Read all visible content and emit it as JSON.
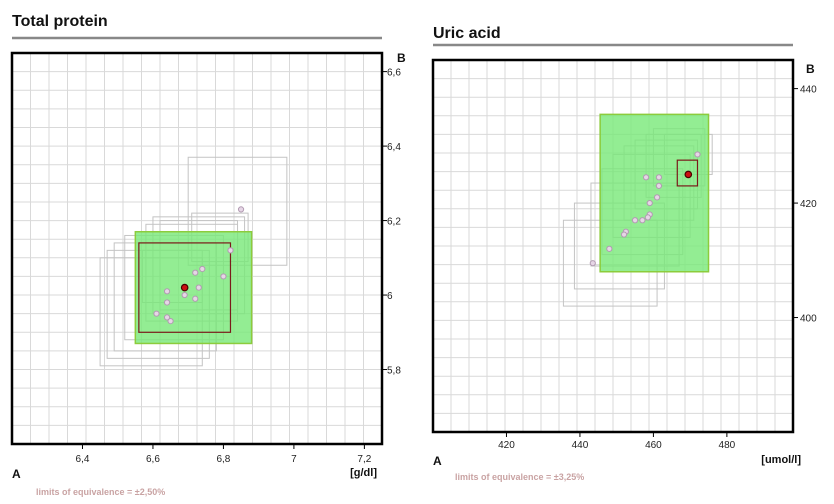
{
  "chart_data": [
    {
      "type": "scatter",
      "title": "Total protein",
      "unit": "[g/dl]",
      "corner_a": "A",
      "corner_b": "B",
      "limits_text": "limits of equivalence = ±2,50%",
      "x_ticks": [
        6.4,
        6.6,
        6.8,
        7,
        7.2
      ],
      "x_tick_labels": [
        "6,4",
        "6,6",
        "6,8",
        "7",
        "7,2"
      ],
      "y_ticks": [
        5.8,
        6,
        6.2,
        6.4,
        6.6
      ],
      "y_tick_labels": [
        "5,8",
        "6",
        "6,2",
        "6,4",
        "6,6"
      ],
      "xlim": [
        6.2,
        7.25
      ],
      "ylim": [
        5.6,
        6.65
      ],
      "grid": true,
      "green_box": {
        "x": [
          6.55,
          6.88
        ],
        "y": [
          5.87,
          6.17
        ]
      },
      "red_box": {
        "x": [
          6.56,
          6.82
        ],
        "y": [
          5.9,
          6.14
        ]
      },
      "gray_boxes": [
        {
          "x": [
            6.7,
            6.98
          ],
          "y": [
            6.08,
            6.37
          ]
        },
        {
          "x": [
            6.71,
            6.87
          ],
          "y": [
            6.09,
            6.22
          ]
        },
        {
          "x": [
            6.45,
            6.74
          ],
          "y": [
            5.81,
            6.1
          ]
        },
        {
          "x": [
            6.47,
            6.76
          ],
          "y": [
            5.83,
            6.12
          ]
        },
        {
          "x": [
            6.49,
            6.78
          ],
          "y": [
            5.85,
            6.14
          ]
        },
        {
          "x": [
            6.52,
            6.8
          ],
          "y": [
            5.88,
            6.16
          ]
        },
        {
          "x": [
            6.58,
            6.84
          ],
          "y": [
            5.93,
            6.19
          ]
        },
        {
          "x": [
            6.6,
            6.86
          ],
          "y": [
            5.95,
            6.21
          ]
        },
        {
          "x": [
            6.57,
            6.74
          ],
          "y": [
            5.98,
            6.12
          ]
        },
        {
          "x": [
            6.62,
            6.84
          ],
          "y": [
            5.96,
            6.2
          ]
        }
      ],
      "points": [
        {
          "x": 6.85,
          "y": 6.23
        },
        {
          "x": 6.82,
          "y": 6.12
        },
        {
          "x": 6.8,
          "y": 6.05
        },
        {
          "x": 6.74,
          "y": 6.07
        },
        {
          "x": 6.72,
          "y": 6.06
        },
        {
          "x": 6.73,
          "y": 6.02
        },
        {
          "x": 6.72,
          "y": 5.99
        },
        {
          "x": 6.69,
          "y": 6.0
        },
        {
          "x": 6.64,
          "y": 6.01
        },
        {
          "x": 6.64,
          "y": 5.98
        },
        {
          "x": 6.61,
          "y": 5.95
        },
        {
          "x": 6.64,
          "y": 5.94
        },
        {
          "x": 6.65,
          "y": 5.93
        }
      ],
      "target": {
        "x": 6.69,
        "y": 6.02
      }
    },
    {
      "type": "scatter",
      "title": "Uric acid",
      "unit": "[umol/l]",
      "corner_a": "A",
      "corner_b": "B",
      "limits_text": "limits of equivalence = ±3,25%",
      "x_ticks": [
        420,
        440,
        460,
        480
      ],
      "x_tick_labels": [
        "420",
        "440",
        "460",
        "480"
      ],
      "y_ticks": [
        400,
        420,
        440
      ],
      "y_tick_labels": [
        "400",
        "420",
        "440"
      ],
      "xlim": [
        400,
        498
      ],
      "ylim": [
        380,
        445
      ],
      "grid": true,
      "green_box": {
        "x": [
          445.5,
          475
        ],
        "y": [
          408,
          435.5
        ]
      },
      "red_box": {
        "x": [
          466.5,
          472
        ],
        "y": [
          423,
          427.5
        ]
      },
      "gray_boxes": [
        {
          "x": [
            435.5,
            461
          ],
          "y": [
            402,
            417
          ]
        },
        {
          "x": [
            438.5,
            463
          ],
          "y": [
            405,
            420
          ]
        },
        {
          "x": [
            443,
            467
          ],
          "y": [
            409,
            423.5
          ]
        },
        {
          "x": [
            446,
            468
          ],
          "y": [
            411,
            426
          ]
        },
        {
          "x": [
            449,
            470
          ],
          "y": [
            414,
            428.5
          ]
        },
        {
          "x": [
            452,
            471
          ],
          "y": [
            417,
            430
          ]
        },
        {
          "x": [
            455,
            472
          ],
          "y": [
            419,
            431
          ]
        },
        {
          "x": [
            458,
            473
          ],
          "y": [
            421,
            432
          ]
        },
        {
          "x": [
            460,
            474
          ],
          "y": [
            423,
            433
          ]
        },
        {
          "x": [
            463,
            476
          ],
          "y": [
            425,
            432
          ]
        }
      ],
      "points": [
        {
          "x": 472,
          "y": 428.5
        },
        {
          "x": 461.5,
          "y": 424.5
        },
        {
          "x": 458,
          "y": 424.5
        },
        {
          "x": 461.5,
          "y": 423
        },
        {
          "x": 461,
          "y": 421
        },
        {
          "x": 459,
          "y": 420
        },
        {
          "x": 459,
          "y": 418
        },
        {
          "x": 458.5,
          "y": 417.5
        },
        {
          "x": 457,
          "y": 417
        },
        {
          "x": 455,
          "y": 417
        },
        {
          "x": 452.5,
          "y": 415
        },
        {
          "x": 452,
          "y": 414.5
        },
        {
          "x": 448,
          "y": 412
        },
        {
          "x": 443.5,
          "y": 409.5
        }
      ],
      "target": {
        "x": 469.5,
        "y": 425
      }
    }
  ]
}
